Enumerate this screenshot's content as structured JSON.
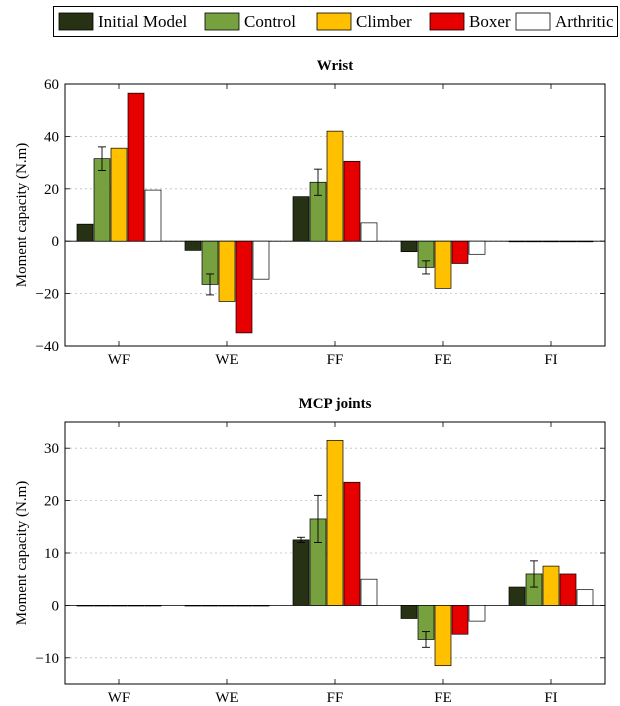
{
  "legend": {
    "placement": "top",
    "items": [
      {
        "label": "Initial Model",
        "color": "#273214"
      },
      {
        "label": "Control",
        "color": "#76a13e"
      },
      {
        "label": "Climber",
        "color": "#ffc000"
      },
      {
        "label": "Boxer",
        "color": "#e60000"
      },
      {
        "label": "Arthritic",
        "color": "#ffffff"
      }
    ]
  },
  "chart_data": [
    {
      "type": "bar",
      "title": "Wrist",
      "xlabel": "",
      "ylabel": "Moment capacity (N.m)",
      "categories": [
        "WF",
        "WE",
        "FF",
        "FE",
        "FI"
      ],
      "ylim": [
        -40,
        60
      ],
      "yticks": [
        -40,
        -20,
        0,
        20,
        40,
        60
      ],
      "grid": true,
      "series": [
        {
          "name": "Initial Model",
          "color": "#273214",
          "values": [
            6.5,
            -3.5,
            17,
            -4,
            0
          ],
          "errors": [
            0,
            0,
            0,
            0,
            0
          ]
        },
        {
          "name": "Control",
          "color": "#76a13e",
          "values": [
            31.5,
            -16.5,
            22.5,
            -10,
            0
          ],
          "errors": [
            4.5,
            4,
            5,
            2.5,
            0
          ]
        },
        {
          "name": "Climber",
          "color": "#ffc000",
          "values": [
            35.5,
            -23,
            42,
            -18,
            0
          ],
          "errors": [
            0,
            0,
            0,
            0,
            0
          ]
        },
        {
          "name": "Boxer",
          "color": "#e60000",
          "values": [
            56.5,
            -35,
            30.5,
            -8.5,
            0
          ],
          "errors": [
            0,
            0,
            0,
            0,
            0
          ]
        },
        {
          "name": "Arthritic",
          "color": "#ffffff",
          "values": [
            19.5,
            -14.5,
            7,
            -5,
            0
          ],
          "errors": [
            0,
            0,
            0,
            0,
            0
          ]
        }
      ]
    },
    {
      "type": "bar",
      "title": "MCP joints",
      "xlabel": "",
      "ylabel": "Moment capacity (N.m)",
      "categories": [
        "WF",
        "WE",
        "FF",
        "FE",
        "FI"
      ],
      "ylim": [
        -15,
        35
      ],
      "yticks": [
        -10,
        0,
        10,
        20,
        30
      ],
      "grid": true,
      "series": [
        {
          "name": "Initial Model",
          "color": "#273214",
          "values": [
            0,
            0,
            12.5,
            -2.5,
            3.5
          ],
          "errors": [
            0,
            0,
            0.5,
            0,
            0
          ]
        },
        {
          "name": "Control",
          "color": "#76a13e",
          "values": [
            0,
            0,
            16.5,
            -6.5,
            6
          ],
          "errors": [
            0,
            0,
            4.5,
            1.5,
            2.5
          ]
        },
        {
          "name": "Climber",
          "color": "#ffc000",
          "values": [
            0,
            0,
            31.5,
            -11.5,
            7.5
          ],
          "errors": [
            0,
            0,
            0,
            0,
            0
          ]
        },
        {
          "name": "Boxer",
          "color": "#e60000",
          "values": [
            0,
            0,
            23.5,
            -5.5,
            6
          ],
          "errors": [
            0,
            0,
            0,
            0,
            0
          ]
        },
        {
          "name": "Arthritic",
          "color": "#ffffff",
          "values": [
            0,
            0,
            5,
            -3,
            3
          ],
          "errors": [
            0,
            0,
            0,
            0,
            0
          ]
        }
      ]
    }
  ]
}
